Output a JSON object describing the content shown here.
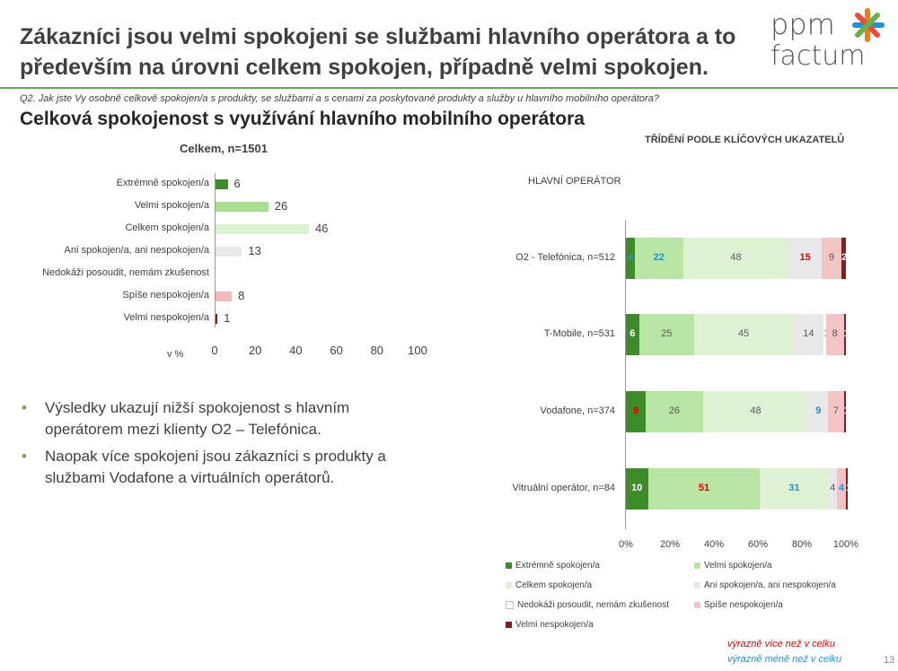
{
  "header": {
    "title": "Zákazníci jsou velmi spokojeni se službami hlavního operátora a to především na úrovni celkem spokojen, případně velmi spokojen.",
    "logo_text": "ppm factum"
  },
  "question": "Q2. Jak jste Vy osobně celkově spokojen/a s produkty, se službami a s cenami za poskytované produkty a služby u hlavního mobilního operátora?",
  "subtitle": "Celková spokojenost s využívání hlavního mobilního operátora",
  "bullets": [
    "Výsledky ukazují nižší spokojenost s hlavním operátorem mezi klienty O2 – Telefónica.",
    "Naopak více spokojeni jsou zákazníci s produkty a službami Vodafone a virtuálních operátorů."
  ],
  "notes": {
    "more": "výrazně více než v celku",
    "less": "výrazně méně než v celku",
    "more_color": "#e00000",
    "less_color": "#1e90d8"
  },
  "page_number": "13",
  "chart_data": [
    {
      "type": "bar",
      "orientation": "horizontal",
      "title": "Celkem, n=1501",
      "xlabel": "v %",
      "xlim": [
        0,
        100
      ],
      "xticks": [
        "0",
        "20",
        "40",
        "60",
        "80",
        "100"
      ],
      "categories": [
        "Extrémně spokojen/a",
        "Velmi spokojen/a",
        "Celkem spokojen/a",
        "Ani spokojen/a, ani nespokojen/a",
        "Nedokáži posoudit, nemám zkušenost",
        "Spíše nespokojen/a",
        "Velmi nespokojen/a"
      ],
      "values": [
        6,
        26,
        46,
        13,
        null,
        8,
        1
      ],
      "colors": [
        "#3e8b2a",
        "#a9dd92",
        "#d9f2d0",
        "#e8e8e8",
        "#ffffff",
        "#f0b8b8",
        "#8b1a1a"
      ]
    },
    {
      "type": "bar",
      "stacked": true,
      "orientation": "horizontal",
      "title": "TŘÍDĚNÍ PODLE KLÍČOVÝCH UKAZATELŮ",
      "group_label": "HLAVNÍ OPERÁTOR",
      "xlim": [
        0,
        100
      ],
      "xticks": [
        "0%",
        "20%",
        "40%",
        "60%",
        "80%",
        "100%"
      ],
      "categories": [
        "O2 - Telefónica, n=512",
        "T-Mobile, n=531",
        "Vodafone, n=374",
        "Vitruální operátor, n=84"
      ],
      "series": [
        {
          "name": "Extrémně spokojen/a",
          "color": "#3e8b2a",
          "values": [
            4,
            6,
            9,
            10
          ],
          "label_colors": [
            "#1e90d8",
            "#ffffff",
            "#e00000",
            "#ffffff"
          ]
        },
        {
          "name": "Velmi spokojen/a",
          "color": "#b8e4a4",
          "values": [
            22,
            25,
            26,
            51
          ],
          "label_colors": [
            "#1e90d8",
            "#595959",
            "#595959",
            "#e00000"
          ]
        },
        {
          "name": "Celkem spokojen/a",
          "color": "#dcf2d3",
          "values": [
            48,
            45,
            48,
            31
          ],
          "label_colors": [
            "#595959",
            "#595959",
            "#595959",
            "#1e90d8"
          ]
        },
        {
          "name": "Ani spokojen/a, ani nespokojen/a",
          "color": "#e8e8e8",
          "values": [
            15,
            14,
            9,
            4
          ],
          "label_colors": [
            "#e00000",
            "#595959",
            "#1e90d8",
            "#595959"
          ]
        },
        {
          "name": "Nedokáži posoudit, nemám zkušenost",
          "color": "#ffffff",
          "values": [
            0,
            1,
            0,
            0
          ],
          "label_colors": [
            "#595959",
            "#595959",
            "#595959",
            "#595959"
          ]
        },
        {
          "name": "Spíše nespokojen/a",
          "color": "#f3c4c4",
          "values": [
            9,
            8,
            7,
            4
          ],
          "label_colors": [
            "#595959",
            "#595959",
            "#595959",
            "#1e90d8"
          ]
        },
        {
          "name": "Velmi nespokojen/a",
          "color": "#8b1a1a",
          "values": [
            2,
            1,
            1,
            1
          ],
          "label_colors": [
            "#ffffff",
            "#ffffff",
            "#ffffff",
            "#ffffff"
          ]
        }
      ]
    }
  ]
}
